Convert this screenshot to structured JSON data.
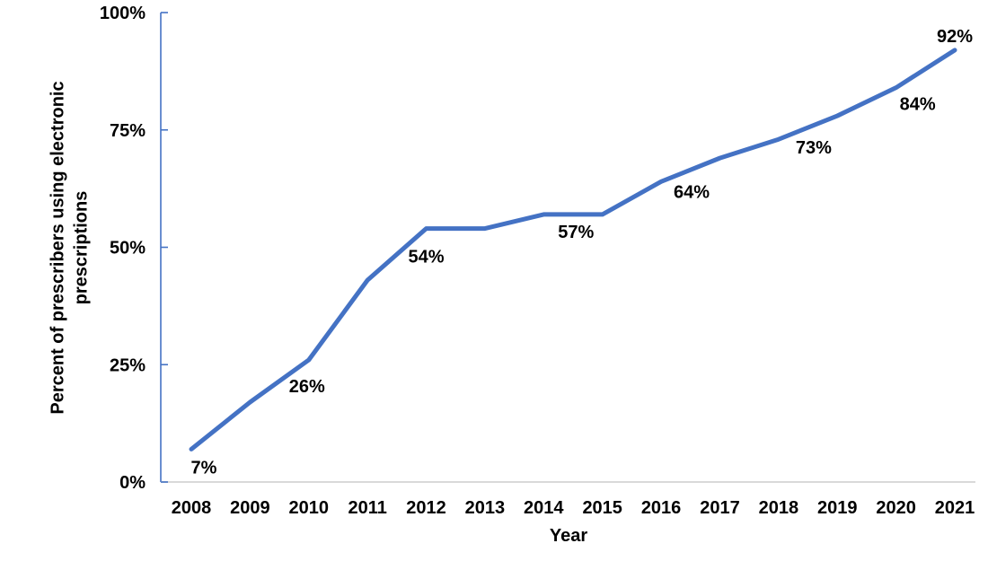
{
  "chart_data": {
    "type": "line",
    "title": "",
    "xlabel": "Year",
    "ylabel": "Percent of prescribers using electronic prescriptions",
    "categories": [
      "2008",
      "2009",
      "2010",
      "2011",
      "2012",
      "2013",
      "2014",
      "2015",
      "2016",
      "2017",
      "2018",
      "2019",
      "2020",
      "2021"
    ],
    "series": [
      {
        "name": "Percent of prescribers using electronic prescriptions",
        "values": [
          7,
          17,
          26,
          43,
          54,
          54,
          57,
          57,
          64,
          69,
          73,
          78,
          84,
          92
        ]
      }
    ],
    "data_labels": [
      "7%",
      null,
      "26%",
      null,
      "54%",
      null,
      "57%",
      null,
      "64%",
      null,
      "73%",
      null,
      "84%",
      "92%"
    ],
    "yticks": [
      "0%",
      "25%",
      "50%",
      "75%",
      "100%"
    ],
    "ytick_values": [
      0,
      25,
      50,
      75,
      100
    ],
    "ylim": [
      0,
      100
    ],
    "grid": "off",
    "legend": "none",
    "colors": {
      "line": "#4472C4",
      "y_axis_line": "#4472C4",
      "x_axis_line": "#D9D9D9",
      "text": "#000000"
    }
  }
}
